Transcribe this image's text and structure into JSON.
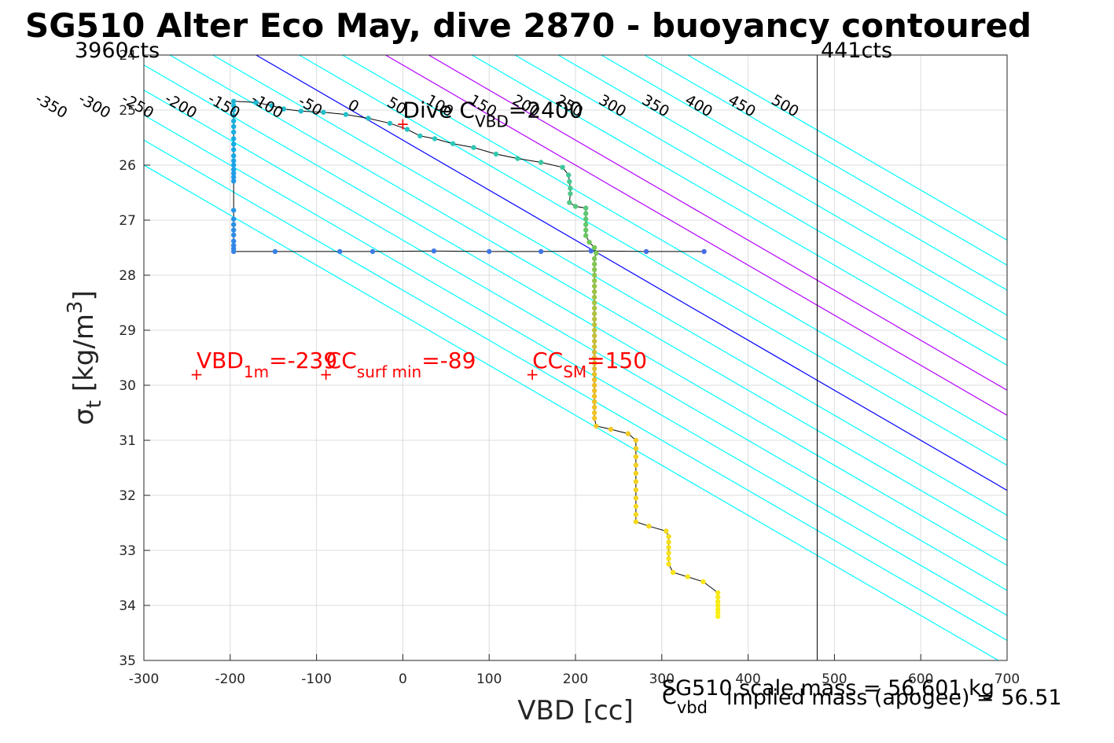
{
  "chart_data": {
    "type": "scatter",
    "title": "SG510 Alter Eco May, dive 2870 - buoyancy contoured",
    "xlabel": "VBD [cc]",
    "xlabel_secondary": {
      "main": "C",
      "sub": "vbd"
    },
    "ylabel": {
      "sigma": "σ",
      "sub": "t",
      "unit": " [kg/m",
      "sup": "3",
      "close": "]"
    },
    "xlim": [
      -300,
      700
    ],
    "ylim": [
      24,
      35
    ],
    "y_reversed": true,
    "grid": true,
    "xticks": [
      -300,
      -200,
      -100,
      0,
      100,
      200,
      300,
      400,
      500,
      600,
      700
    ],
    "yticks": [
      24,
      25,
      26,
      27,
      28,
      29,
      30,
      31,
      32,
      33,
      34,
      35
    ],
    "colors": {
      "contour": "#00ffff",
      "zero_contour": "#0000ff",
      "highlight_contour": "#b300ff",
      "marker": "#ff0000",
      "annotation": "#ff0000",
      "path": "#000000"
    },
    "corner_labels": {
      "left": "3960cts",
      "right": "441cts"
    },
    "vertical_marker_x": 480,
    "contours_upper": {
      "levels": [
        -350,
        -300,
        -250,
        -200,
        -150,
        -100,
        -50,
        0,
        50,
        100,
        150,
        200,
        250,
        300,
        350,
        400,
        450,
        500
      ],
      "intercepts": [
        -520,
        -470,
        -420,
        -370,
        -320,
        -270,
        -220,
        -170,
        -120,
        -70,
        -20,
        30,
        80,
        130,
        180,
        230,
        280,
        330
      ],
      "slope_cc_per_sigma": 110,
      "sigma_ref": 24,
      "zero_level": 0,
      "highlight_levels": [
        150,
        200
      ]
    },
    "contours_lower": {
      "levels": [
        0,
        50,
        100,
        150,
        200,
        250,
        300,
        350,
        400,
        450,
        500
      ],
      "intercepts": [
        -1950,
        -1900,
        -1850,
        -1800,
        -1750,
        -1700,
        -1650,
        -1600,
        -1550,
        -1500,
        -1450
      ],
      "slope_cc_per_sigma": 59,
      "sigma_ref": 24,
      "zero_level": 0,
      "highlight_levels": [
        100,
        150
      ]
    },
    "annotations": [
      {
        "main": "Dive C",
        "sub": "VBD",
        "value": "=2400",
        "color": "#000000",
        "x": 0,
        "y": 25.25
      },
      {
        "main": "VBD",
        "sub": "1m",
        "value": "=-239",
        "color": "#ff0000",
        "x": -239,
        "y": 29.8
      },
      {
        "main": "CC",
        "sub": "surf min",
        "value": "=-89",
        "color": "#ff0000",
        "x": -89,
        "y": 29.8
      },
      {
        "main": "CC",
        "sub": "SM",
        "value": "=150",
        "color": "#ff0000",
        "x": 150,
        "y": 29.8
      }
    ],
    "markers": [
      {
        "x": 0,
        "y": 25.25
      },
      {
        "x": -239,
        "y": 29.8
      },
      {
        "x": -89,
        "y": 29.8
      },
      {
        "x": 150,
        "y": 29.8
      }
    ],
    "footer_text": {
      "scale_mass": "SG510 scale mass = 56.601 kg",
      "implied_mass": "implied mass (apogee) = 56.51"
    },
    "series": [
      {
        "description_color": "viridis",
        "points": [
          {
            "x": 349,
            "y": 27.57
          },
          {
            "x": 282,
            "y": 27.57
          },
          {
            "x": 218,
            "y": 27.56
          },
          {
            "x": 160,
            "y": 27.57
          },
          {
            "x": 100,
            "y": 27.57
          },
          {
            "x": 36,
            "y": 27.56
          },
          {
            "x": -35,
            "y": 27.57
          },
          {
            "x": -73,
            "y": 27.57
          },
          {
            "x": -148,
            "y": 27.57
          },
          {
            "x": -196,
            "y": 27.57
          },
          {
            "x": -196,
            "y": 27.52
          },
          {
            "x": -196,
            "y": 27.46
          },
          {
            "x": -196,
            "y": 27.38
          },
          {
            "x": -196,
            "y": 27.27
          },
          {
            "x": -196,
            "y": 27.18
          },
          {
            "x": -196,
            "y": 27.08
          },
          {
            "x": -196,
            "y": 26.98
          },
          {
            "x": -196,
            "y": 26.82
          },
          {
            "x": -196,
            "y": 26.29
          },
          {
            "x": -196,
            "y": 26.22
          },
          {
            "x": -196,
            "y": 26.15
          },
          {
            "x": -196,
            "y": 26.08
          },
          {
            "x": -196,
            "y": 26.0
          },
          {
            "x": -196,
            "y": 25.92
          },
          {
            "x": -196,
            "y": 25.83
          },
          {
            "x": -196,
            "y": 25.72
          },
          {
            "x": -196,
            "y": 25.62
          },
          {
            "x": -196,
            "y": 25.52
          },
          {
            "x": -196,
            "y": 25.4
          },
          {
            "x": -196,
            "y": 25.3
          },
          {
            "x": -196,
            "y": 25.2
          },
          {
            "x": -196,
            "y": 25.1
          },
          {
            "x": -196,
            "y": 25.0
          },
          {
            "x": -196,
            "y": 24.92
          },
          {
            "x": -196,
            "y": 24.84
          },
          {
            "x": -170,
            "y": 24.86
          },
          {
            "x": -152,
            "y": 24.92
          },
          {
            "x": -138,
            "y": 24.98
          },
          {
            "x": -118,
            "y": 25.02
          },
          {
            "x": -92,
            "y": 25.04
          },
          {
            "x": -66,
            "y": 25.08
          },
          {
            "x": -40,
            "y": 25.15
          },
          {
            "x": -15,
            "y": 25.24
          },
          {
            "x": 5,
            "y": 25.35
          },
          {
            "x": 20,
            "y": 25.47
          },
          {
            "x": 37,
            "y": 25.52
          },
          {
            "x": 58,
            "y": 25.61
          },
          {
            "x": 82,
            "y": 25.68
          },
          {
            "x": 108,
            "y": 25.8
          },
          {
            "x": 133,
            "y": 25.88
          },
          {
            "x": 160,
            "y": 25.95
          },
          {
            "x": 185,
            "y": 26.04
          },
          {
            "x": 192,
            "y": 26.18
          },
          {
            "x": 193,
            "y": 26.3
          },
          {
            "x": 194,
            "y": 26.42
          },
          {
            "x": 194,
            "y": 26.52
          },
          {
            "x": 193,
            "y": 26.68
          },
          {
            "x": 200,
            "y": 26.75
          },
          {
            "x": 212,
            "y": 26.78
          },
          {
            "x": 212,
            "y": 26.88
          },
          {
            "x": 212,
            "y": 26.98
          },
          {
            "x": 212,
            "y": 27.08
          },
          {
            "x": 212,
            "y": 27.18
          },
          {
            "x": 212,
            "y": 27.28
          },
          {
            "x": 216,
            "y": 27.4
          },
          {
            "x": 222,
            "y": 27.5
          },
          {
            "x": 224,
            "y": 27.6
          },
          {
            "x": 222,
            "y": 27.7
          },
          {
            "x": 222,
            "y": 27.8
          },
          {
            "x": 222,
            "y": 27.9
          },
          {
            "x": 222,
            "y": 28.0
          },
          {
            "x": 222,
            "y": 28.1
          },
          {
            "x": 222,
            "y": 28.2
          },
          {
            "x": 222,
            "y": 28.3
          },
          {
            "x": 222,
            "y": 28.4
          },
          {
            "x": 222,
            "y": 28.5
          },
          {
            "x": 222,
            "y": 28.6
          },
          {
            "x": 222,
            "y": 28.7
          },
          {
            "x": 222,
            "y": 28.8
          },
          {
            "x": 222,
            "y": 28.9
          },
          {
            "x": 222,
            "y": 29.0
          },
          {
            "x": 222,
            "y": 29.1
          },
          {
            "x": 222,
            "y": 29.2
          },
          {
            "x": 222,
            "y": 29.3
          },
          {
            "x": 222,
            "y": 29.4
          },
          {
            "x": 222,
            "y": 29.5
          },
          {
            "x": 222,
            "y": 29.6
          },
          {
            "x": 222,
            "y": 29.7
          },
          {
            "x": 222,
            "y": 29.8
          },
          {
            "x": 222,
            "y": 29.9
          },
          {
            "x": 222,
            "y": 30.0
          },
          {
            "x": 222,
            "y": 30.1
          },
          {
            "x": 222,
            "y": 30.2
          },
          {
            "x": 222,
            "y": 30.3
          },
          {
            "x": 222,
            "y": 30.4
          },
          {
            "x": 222,
            "y": 30.5
          },
          {
            "x": 222,
            "y": 30.6
          },
          {
            "x": 224,
            "y": 30.74
          },
          {
            "x": 241,
            "y": 30.8
          },
          {
            "x": 261,
            "y": 30.88
          },
          {
            "x": 270,
            "y": 31.0
          },
          {
            "x": 270,
            "y": 31.15
          },
          {
            "x": 270,
            "y": 31.3
          },
          {
            "x": 270,
            "y": 31.45
          },
          {
            "x": 270,
            "y": 31.6
          },
          {
            "x": 270,
            "y": 31.75
          },
          {
            "x": 270,
            "y": 31.9
          },
          {
            "x": 270,
            "y": 32.05
          },
          {
            "x": 270,
            "y": 32.2
          },
          {
            "x": 270,
            "y": 32.35
          },
          {
            "x": 270,
            "y": 32.48
          },
          {
            "x": 285,
            "y": 32.56
          },
          {
            "x": 305,
            "y": 32.65
          },
          {
            "x": 308,
            "y": 32.75
          },
          {
            "x": 308,
            "y": 32.85
          },
          {
            "x": 308,
            "y": 32.95
          },
          {
            "x": 308,
            "y": 33.05
          },
          {
            "x": 308,
            "y": 33.15
          },
          {
            "x": 308,
            "y": 33.25
          },
          {
            "x": 313,
            "y": 33.4
          },
          {
            "x": 330,
            "y": 33.48
          },
          {
            "x": 348,
            "y": 33.57
          },
          {
            "x": 365,
            "y": 33.77
          },
          {
            "x": 365,
            "y": 33.85
          },
          {
            "x": 365,
            "y": 33.93
          },
          {
            "x": 365,
            "y": 34.0
          },
          {
            "x": 365,
            "y": 34.07
          },
          {
            "x": 365,
            "y": 34.13
          },
          {
            "x": 365,
            "y": 34.2
          }
        ]
      }
    ]
  }
}
